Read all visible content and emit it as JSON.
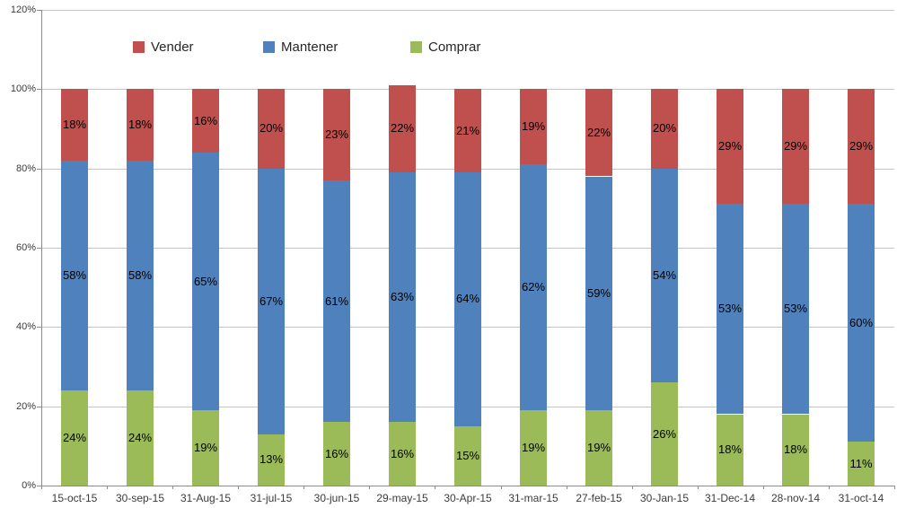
{
  "chart_data": {
    "type": "bar",
    "stacked": true,
    "categories": [
      "15-oct-15",
      "30-sep-15",
      "31-Aug-15",
      "31-jul-15",
      "30-jun-15",
      "29-may-15",
      "30-Apr-15",
      "31-mar-15",
      "27-feb-15",
      "30-Jan-15",
      "31-Dec-14",
      "28-nov-14",
      "31-oct-14"
    ],
    "series": [
      {
        "name": "Comprar",
        "color": "#9BBB59",
        "values": [
          24,
          24,
          19,
          13,
          16,
          16,
          15,
          19,
          19,
          26,
          18,
          18,
          11
        ]
      },
      {
        "name": "Mantener",
        "color": "#4F81BD",
        "values": [
          58,
          58,
          65,
          67,
          61,
          63,
          64,
          62,
          59,
          54,
          53,
          53,
          60
        ]
      },
      {
        "name": "Vender",
        "color": "#C0504D",
        "values": [
          18,
          18,
          16,
          20,
          23,
          22,
          21,
          19,
          22,
          20,
          29,
          29,
          29
        ]
      }
    ],
    "legend_order": [
      "Vender",
      "Mantener",
      "Comprar"
    ],
    "legend_position": "top-inside",
    "y_axis": {
      "min": 0,
      "max": 120,
      "ticks": [
        "0%",
        "20%",
        "40%",
        "60%",
        "80%",
        "100%",
        "120%"
      ]
    },
    "grid": true,
    "data_label_suffix": "%",
    "colors": {
      "gridline": "#C6C6C6",
      "axis": "#8C8C8C",
      "tick_label": "#3B3B3B",
      "data_label": "#000000",
      "background": "#FFFFFF"
    }
  }
}
